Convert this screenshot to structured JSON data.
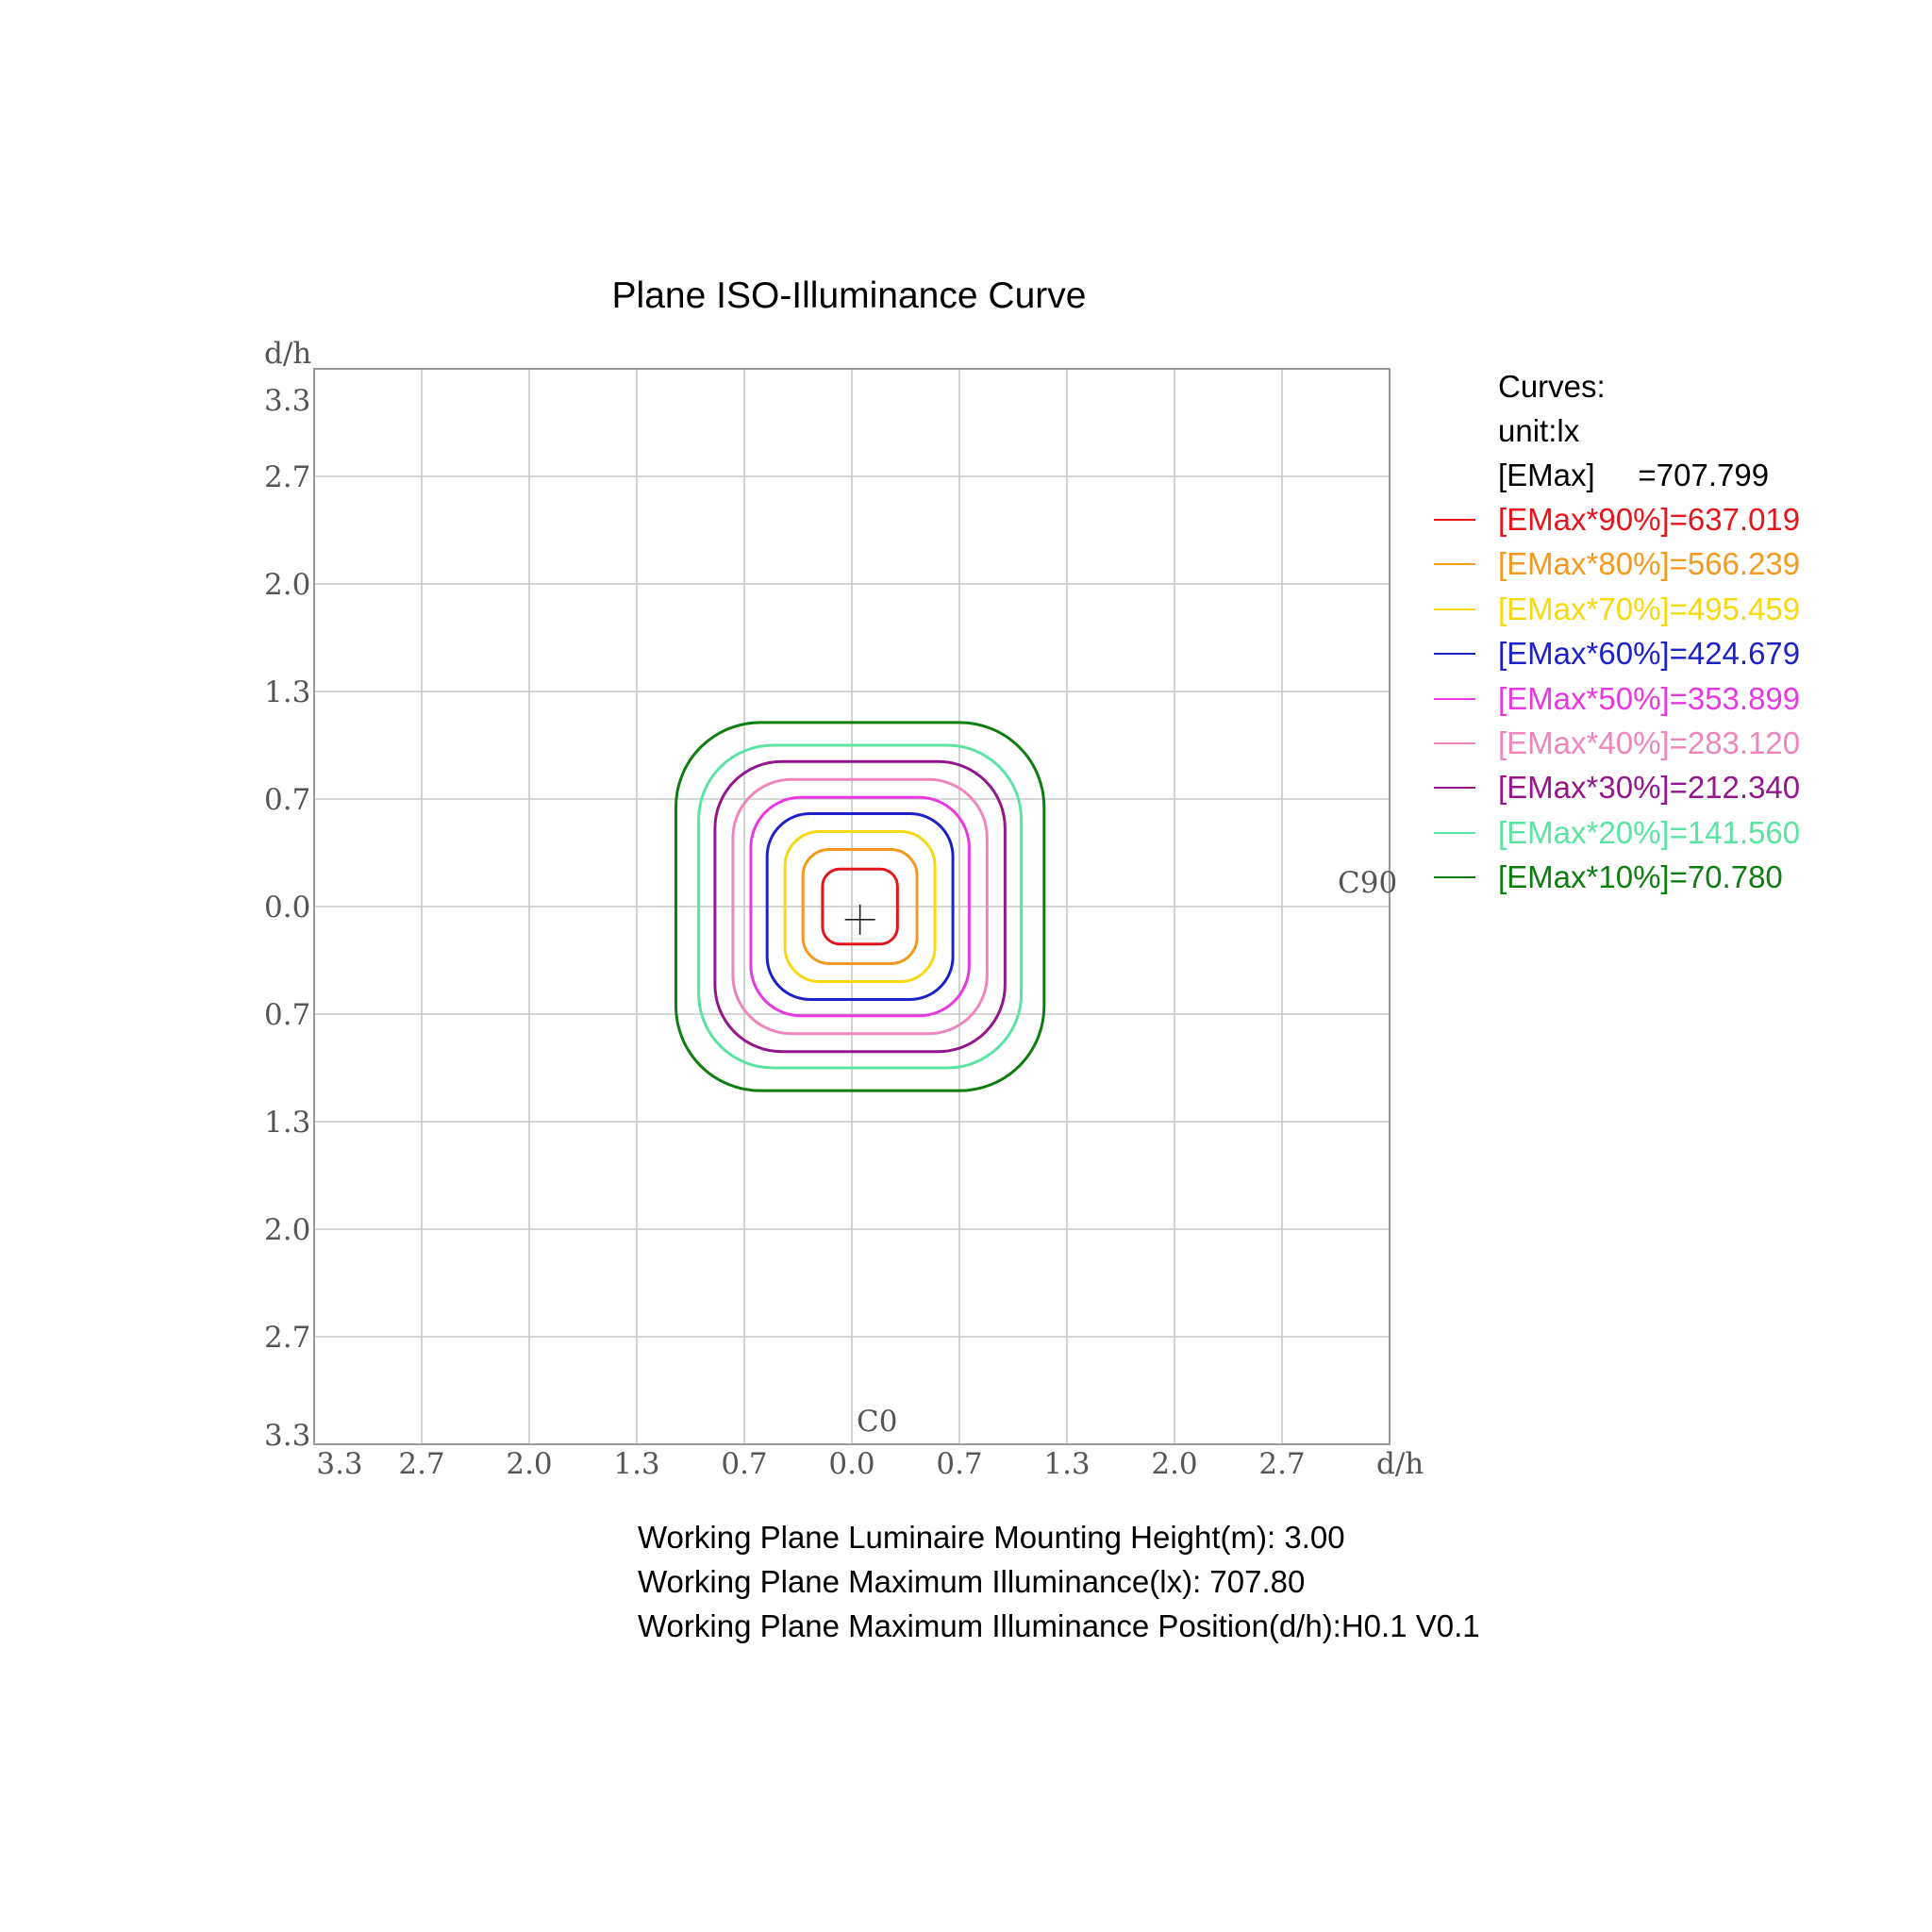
{
  "chart_data": {
    "type": "contour",
    "title": "Plane ISO-Illuminance Curve",
    "y_axis_label": "d/h",
    "x_axis_label": "d/h",
    "y_tick_labels": [
      "3.3",
      "2.7",
      "2.0",
      "1.3",
      "0.7",
      "0.0",
      "0.7",
      "1.3",
      "2.0",
      "2.7",
      "3.3"
    ],
    "x_tick_labels": [
      "3.3",
      "2.7",
      "2.0",
      "1.3",
      "0.7",
      "0.0",
      "0.7",
      "1.3",
      "2.0",
      "2.7"
    ],
    "x_range": [
      -3.3,
      3.3
    ],
    "y_range": [
      -3.3,
      3.3
    ],
    "grid": true,
    "annotations": {
      "c90": "C90",
      "c0": "C0"
    },
    "emax_position": {
      "h": 0.05,
      "v": -0.08
    },
    "legend": {
      "heading": "Curves:",
      "unit": "unit:lx",
      "emax_label": "[EMax]     =707.799",
      "placement": "right"
    },
    "series": [
      {
        "name": "[EMax*90%]=637.019",
        "color": "#e4151b",
        "half_width": 0.23,
        "center": [
          0.05,
          0.0
        ]
      },
      {
        "name": "[EMax*80%]=566.239",
        "color": "#f39a1e",
        "half_width": 0.35,
        "center": [
          0.05,
          0.0
        ]
      },
      {
        "name": "[EMax*70%]=495.459",
        "color": "#f6d90f",
        "half_width": 0.46,
        "center": [
          0.05,
          0.0
        ]
      },
      {
        "name": "[EMax*60%]=424.679",
        "color": "#1d22c8",
        "half_width": 0.57,
        "center": [
          0.05,
          0.0
        ]
      },
      {
        "name": "[EMax*50%]=353.899",
        "color": "#e838e0",
        "half_width": 0.67,
        "center": [
          0.05,
          0.0
        ]
      },
      {
        "name": "[EMax*40%]=283.120",
        "color": "#ee86bd",
        "half_width": 0.78,
        "center": [
          0.05,
          0.0
        ]
      },
      {
        "name": "[EMax*30%]=212.340",
        "color": "#93168c",
        "half_width": 0.89,
        "center": [
          0.05,
          0.0
        ]
      },
      {
        "name": "[EMax*20%]=141.560",
        "color": "#5be3a1",
        "half_width": 0.99,
        "center": [
          0.05,
          0.0
        ]
      },
      {
        "name": "[EMax*10%]=70.780",
        "color": "#0e7d10",
        "half_width": 1.13,
        "center": [
          0.05,
          0.0
        ]
      }
    ]
  },
  "info": {
    "line1": "Working Plane Luminaire Mounting Height(m): 3.00",
    "line2": "Working Plane Maximum Illuminance(lx): 707.80",
    "line3": "Working Plane Maximum Illuminance Position(d/h):H0.1 V0.1"
  }
}
